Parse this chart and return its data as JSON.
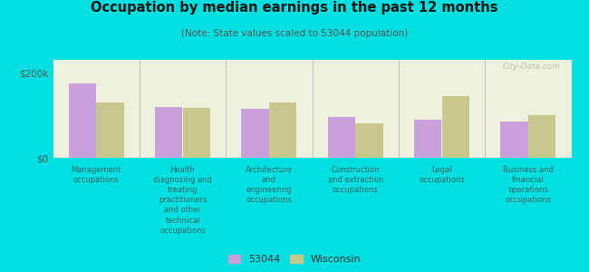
{
  "title": "Occupation by median earnings in the past 12 months",
  "subtitle": "(Note: State values scaled to 53044 population)",
  "categories": [
    "Management\noccupations",
    "Health\ndiagnosing and\ntreating\npractitioners\nand other\ntechnical\noccupations",
    "Architecture\nand\nengineering\noccupations",
    "Construction\nand extraction\noccupations",
    "Legal\noccupations",
    "Business and\nfinancial\noperations\noccupations"
  ],
  "values_53044": [
    175000,
    120000,
    115000,
    95000,
    90000,
    85000
  ],
  "values_wisconsin": [
    130000,
    118000,
    130000,
    80000,
    145000,
    100000
  ],
  "color_53044": "#c9a0dc",
  "color_wisconsin": "#c8c88c",
  "bar_width": 0.32,
  "ylim": [
    0,
    230000
  ],
  "yticks": [
    0,
    200000
  ],
  "ytick_labels": [
    "$0",
    "$200k"
  ],
  "background_color": "#00e0e0",
  "plot_bg_color": "#eef2dc",
  "legend_label_53044": "53044",
  "legend_label_wisconsin": "Wisconsin",
  "watermark": "City-Data.com"
}
